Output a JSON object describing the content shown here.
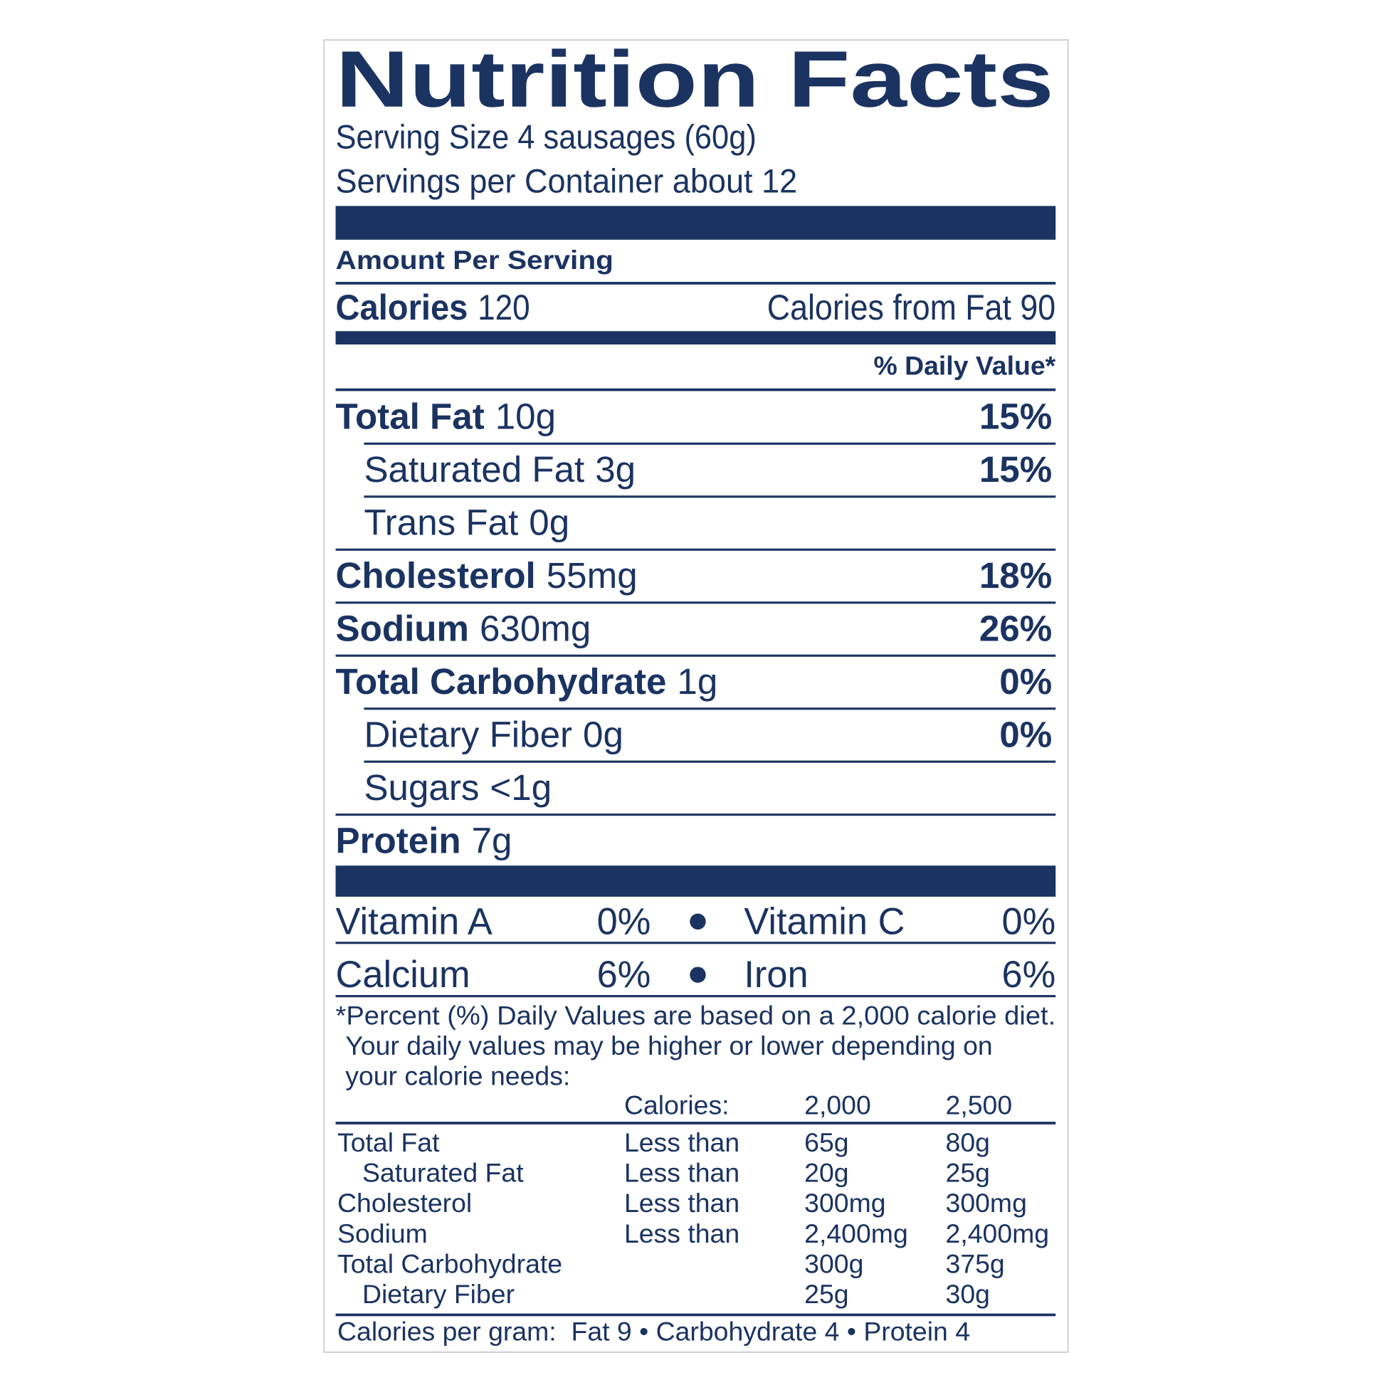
{
  "title": "Nutrition Facts",
  "serving_size": "Serving Size 4 sausages (60g)",
  "servings_per_container": "Servings per Container about 12",
  "amount_per_serving": "Amount Per Serving",
  "calories": {
    "label": "Calories",
    "value": "120"
  },
  "calories_from_fat": "Calories from Fat 90",
  "daily_value_header": "% Daily Value*",
  "nutrients": [
    {
      "name": "Total Fat",
      "amount": "10g",
      "dv": "15%",
      "bold": true,
      "indent": false
    },
    {
      "name": "Saturated Fat",
      "amount": "3g",
      "dv": "15%",
      "bold": false,
      "indent": true
    },
    {
      "name": "Trans Fat",
      "amount": "0g",
      "bold": false,
      "indent": true
    },
    {
      "name": "Cholesterol",
      "amount": "55mg",
      "dv": "18%",
      "bold": true,
      "indent": false
    },
    {
      "name": "Sodium",
      "amount": "630mg",
      "dv": "26%",
      "bold": true,
      "indent": false
    },
    {
      "name": "Total Carbohydrate",
      "amount": "1g",
      "dv": "0%",
      "bold": true,
      "indent": false
    },
    {
      "name": "Dietary Fiber",
      "amount": "0g",
      "dv": "0%",
      "bold": false,
      "indent": true
    },
    {
      "name": "Sugars",
      "amount": "<1g",
      "bold": false,
      "indent": true
    },
    {
      "name": "Protein",
      "amount": "7g",
      "bold": true,
      "indent": false
    }
  ],
  "vitamins": [
    [
      {
        "name": "Vitamin A",
        "dv": "0%"
      },
      {
        "name": "Vitamin C",
        "dv": "0%"
      }
    ],
    [
      {
        "name": "Calcium",
        "dv": "6%"
      },
      {
        "name": "Iron",
        "dv": "6%"
      }
    ]
  ],
  "footnote": [
    "*Percent (%) Daily Values are based on a 2,000 calorie diet.",
    "Your daily values may be higher or lower depending on",
    "your calorie needs:"
  ],
  "reference_header": [
    "Calories:",
    "2,000",
    "2,500"
  ],
  "reference_rows": [
    {
      "nutrient": "Total Fat",
      "limit": "Less than",
      "v2000": "65g",
      "v2500": "80g",
      "indent": false
    },
    {
      "nutrient": "Saturated Fat",
      "limit": "Less than",
      "v2000": "20g",
      "v2500": "25g",
      "indent": true
    },
    {
      "nutrient": "Cholesterol",
      "limit": "Less than",
      "v2000": "300mg",
      "v2500": "300mg",
      "indent": false
    },
    {
      "nutrient": "Sodium",
      "limit": "Less than",
      "v2000": "2,400mg",
      "v2500": "2,400mg",
      "indent": false
    },
    {
      "nutrient": "Total Carbohydrate",
      "v2000": "300g",
      "v2500": "375g",
      "indent": false
    },
    {
      "nutrient": "Dietary Fiber",
      "v2000": "25g",
      "v2500": "30g",
      "indent": true
    }
  ],
  "calories_per_gram": "Calories per gram:  Fat 9 • Carbohydrate 4 • Protein 4"
}
